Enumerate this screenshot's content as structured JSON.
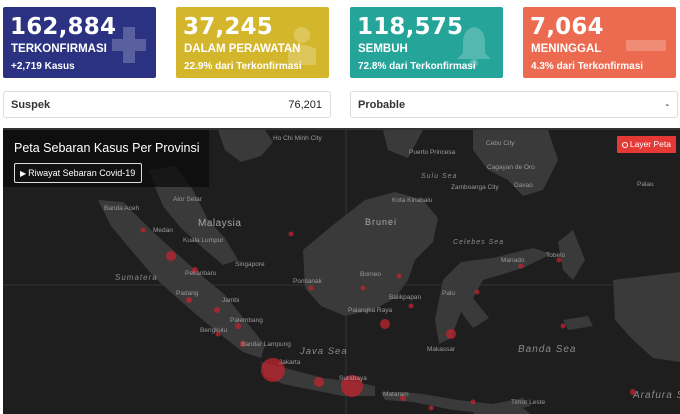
{
  "stats": [
    {
      "value": "162,884",
      "label": "TERKONFIRMASI",
      "sub": "+2,719 Kasus",
      "color": "#2b3282",
      "icon": "plus-icon"
    },
    {
      "value": "37,245",
      "label": "DALAM PERAWATAN",
      "sub": "22.9% dari Terkonfirmasi",
      "color": "#d4b62c",
      "icon": "patient-bed-icon"
    },
    {
      "value": "118,575",
      "label": "SEMBUH",
      "sub": "72.8% dari Terkonfirmasi",
      "color": "#25a49a",
      "icon": "bell-icon"
    },
    {
      "value": "7,064",
      "label": "MENINGGAL",
      "sub": "4.3% dari Terkonfirmasi",
      "color": "#ec6a50",
      "icon": "minus-icon"
    }
  ],
  "suspek": {
    "label": "Suspek",
    "value": "76,201"
  },
  "probable": {
    "label": "Probable",
    "value": "-"
  },
  "map": {
    "title": "Peta Sebaran Kasus Per Provinsi",
    "history_button": "Riwayat Sebaran Covid-19",
    "layer_button": "Layer Peta",
    "places": [
      "Ho Chi Minh City",
      "Puerto Princesa",
      "Cebu City",
      "Cagayan de Oro",
      "Zamboanga City",
      "Davao",
      "Kota Kinabalu",
      "Alor Setar",
      "Banda Aceh",
      "Malaysia",
      "Medan",
      "Kuala Lumpur",
      "Singapore",
      "Pekanbaru",
      "Brunei",
      "Pontianak",
      "Borneo",
      "Manado",
      "Tobelo",
      "Palau",
      "Padang",
      "Jambi",
      "Palembang",
      "Bengkulu",
      "Balikpapan",
      "Palu",
      "Palangka Raya",
      "Bandar Lampung",
      "Jakarta",
      "Java Sea",
      "Makassar",
      "Banda Sea",
      "Surabaya",
      "Mataram",
      "Arafura Sea",
      "Celebes Sea",
      "Timor Leste",
      "Sulu Sea",
      "Sumatera"
    ]
  }
}
